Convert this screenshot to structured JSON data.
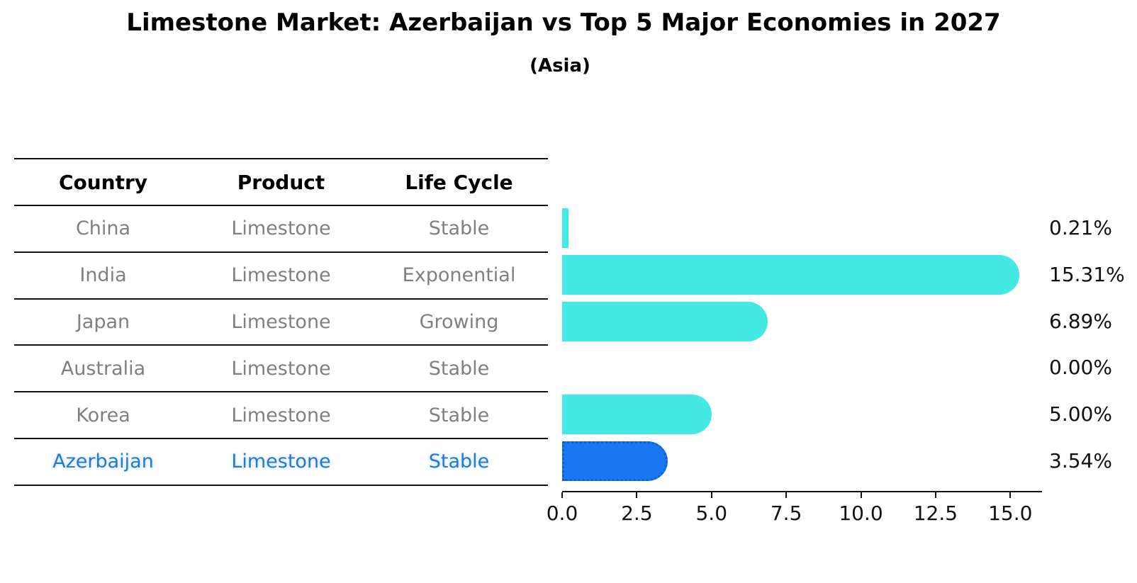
{
  "title": "Limestone Market: Azerbaijan vs Top 5 Major Economies in 2027",
  "subtitle": "(Asia)",
  "table": {
    "headers": [
      "Country",
      "Product",
      "Life Cycle"
    ],
    "rows": [
      {
        "country": "China",
        "product": "Limestone",
        "life_cycle": "Stable",
        "highlight": false
      },
      {
        "country": "India",
        "product": "Limestone",
        "life_cycle": "Exponential",
        "highlight": false
      },
      {
        "country": "Japan",
        "product": "Limestone",
        "life_cycle": "Growing",
        "highlight": false
      },
      {
        "country": "Australia",
        "product": "Limestone",
        "life_cycle": "Stable",
        "highlight": false
      },
      {
        "country": "Korea",
        "product": "Limestone",
        "life_cycle": "Stable",
        "highlight": false
      },
      {
        "country": "Azerbaijan",
        "product": "Limestone",
        "life_cycle": "Stable",
        "highlight": true
      }
    ]
  },
  "chart_data": {
    "type": "bar",
    "orientation": "horizontal",
    "categories": [
      "China",
      "India",
      "Japan",
      "Australia",
      "Korea",
      "Azerbaijan"
    ],
    "values": [
      0.21,
      15.31,
      6.89,
      0.0,
      5.0,
      3.54
    ],
    "labels": [
      "0.21%",
      "15.31%",
      "6.89%",
      "0.00%",
      "5.00%",
      "3.54%"
    ],
    "x_ticks": [
      "0.0",
      "2.5",
      "5.0",
      "7.5",
      "10.0",
      "12.5",
      "15.0"
    ],
    "xlim": [
      0,
      16.07
    ],
    "grid": false,
    "legend": "none",
    "bar_color": "#45E9E3",
    "highlight_index": 5,
    "highlight_color": "#1B76F2",
    "highlight_border_color": "#0F5FD9"
  },
  "colors": {
    "text_default": "#808080",
    "text_header": "#000000",
    "highlight_text": "#2879CF",
    "axis": "#111111"
  }
}
